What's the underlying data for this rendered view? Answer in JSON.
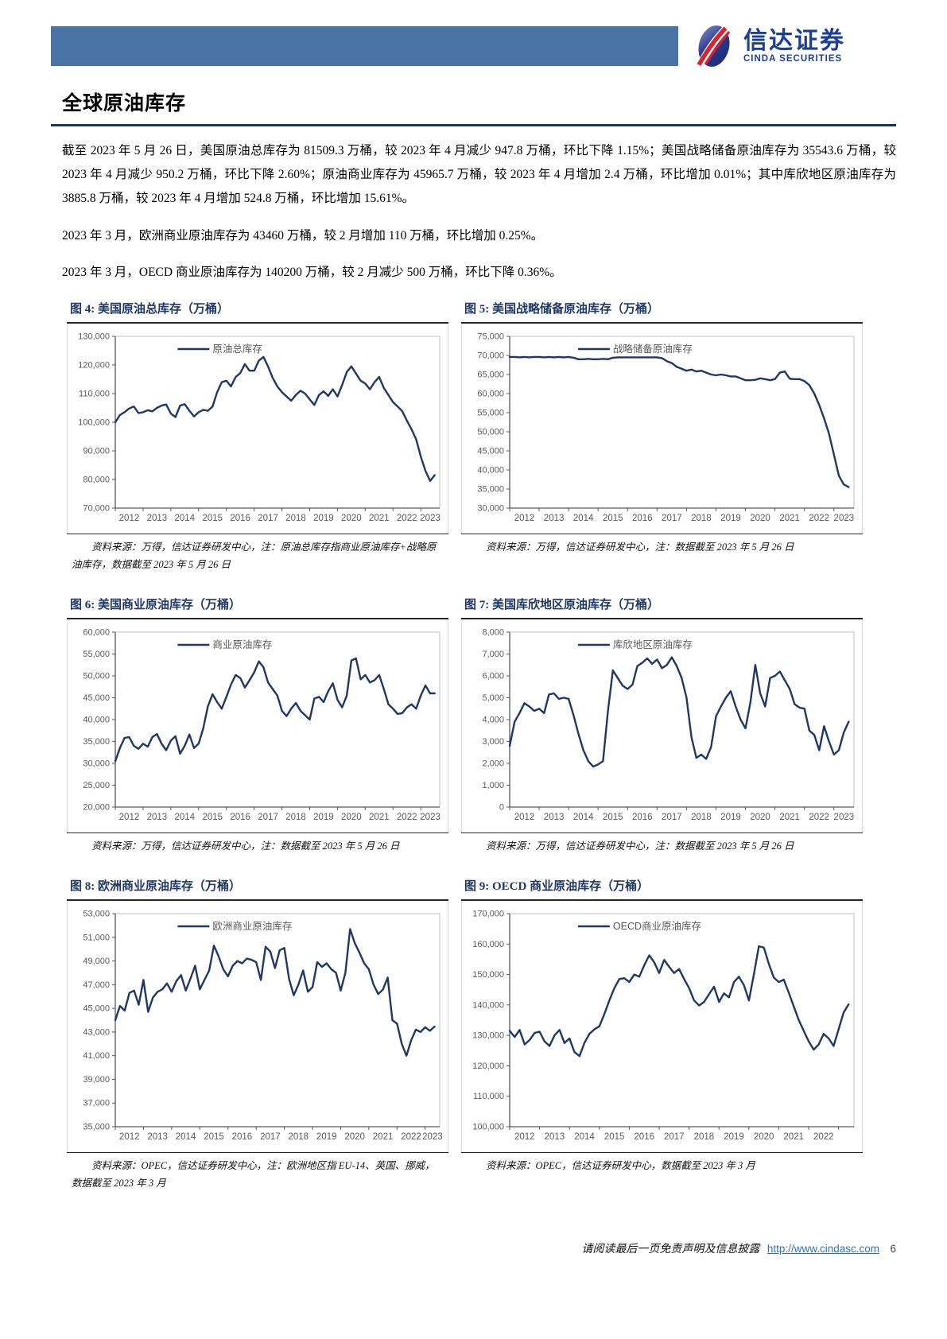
{
  "page": {
    "title": "全球原油库存",
    "footer": {
      "disclaimer": "请阅读最后一页免责声明及信息披露",
      "url": "http://www.cindasc.com",
      "page_number": "6"
    }
  },
  "brand": {
    "name_cn": "信达证券",
    "name_en": "CINDA SECURITIES",
    "header_bar_color": "#4b74a6",
    "logo_blue": "#1c3f94",
    "logo_red": "#d8232a"
  },
  "colors": {
    "line": "#1f3864",
    "figure_title": "#1f3864",
    "axis_text": "#595959",
    "plot_border": "#bfbfbf",
    "axis_line": "#595959"
  },
  "paragraphs": [
    "截至 2023 年 5 月 26 日，美国原油总库存为 81509.3 万桶，较 2023 年 4 月减少 947.8 万桶，环比下降 1.15%；美国战略储备原油库存为 35543.6 万桶，较 2023 年 4 月减少 950.2 万桶，环比下降 2.60%；原油商业库存为 45965.7 万桶，较 2023 年 4 月增加 2.4 万桶，环比增加 0.01%；其中库欣地区原油库存为 3885.8 万桶，较 2023 年 4 月增加 524.8 万桶，环比增加 15.61%。",
    "2023 年 3 月，欧洲商业原油库存为 43460 万桶，较 2 月增加 110 万桶，环比增加 0.25%。",
    "2023 年 3 月，OECD 商业原油库存为 140200 万桶，较 2 月减少 500 万桶，环比下降 0.36%。"
  ],
  "chart_data": [
    {
      "type": "line",
      "figure_label": "图 4:  美国原油总库存（万桶）",
      "legend": "原油总库存",
      "source": "资料来源：万得，信达证券研发中心，注：原油总库存指商业原油库存+战略原油库存，数据截至 2023 年 5 月 26 日",
      "xlabel": "",
      "ylabel": "",
      "ylim": [
        70000,
        130000
      ],
      "ytick_step": 10000,
      "x_labels": [
        "2012",
        "2013",
        "2014",
        "2015",
        "2016",
        "2017",
        "2018",
        "2019",
        "2020",
        "2021",
        "2022",
        "2023"
      ],
      "x_start": 2012.0,
      "x_step": 0.1667,
      "values": [
        100000,
        102500,
        103500,
        104800,
        105500,
        103200,
        103500,
        104200,
        103800,
        105000,
        105800,
        106200,
        103000,
        101800,
        105800,
        106300,
        104000,
        102000,
        103500,
        104300,
        104000,
        105500,
        110500,
        114000,
        114500,
        112500,
        115800,
        117200,
        120300,
        118000,
        118000,
        121500,
        122800,
        119500,
        115500,
        112500,
        110500,
        109000,
        107500,
        109500,
        111000,
        110000,
        108000,
        106000,
        109500,
        110800,
        109200,
        111500,
        109000,
        113000,
        117500,
        119500,
        117000,
        114500,
        113500,
        111500,
        114000,
        115800,
        112000,
        109500,
        107000,
        105500,
        103800,
        100500,
        97500,
        94000,
        88000,
        83000,
        79500,
        81500
      ]
    },
    {
      "type": "line",
      "figure_label": "图 5:  美国战略储备原油库存（万桶）",
      "legend": "战略储备原油库存",
      "source": "资料来源：万得，信达证券研发中心，注：数据截至 2023 年 5 月 26 日",
      "xlabel": "",
      "ylabel": "",
      "ylim": [
        30000,
        75000
      ],
      "ytick_step": 5000,
      "x_labels": [
        "2012",
        "2013",
        "2014",
        "2015",
        "2016",
        "2017",
        "2018",
        "2019",
        "2020",
        "2021",
        "2022",
        "2023"
      ],
      "x_start": 2012.0,
      "x_step": 0.1667,
      "values": [
        69600,
        69600,
        69500,
        69600,
        69500,
        69600,
        69600,
        69500,
        69600,
        69500,
        69600,
        69500,
        69600,
        69400,
        69000,
        69000,
        69100,
        69000,
        69000,
        69100,
        69000,
        69400,
        69500,
        69500,
        69500,
        69500,
        69500,
        69500,
        69500,
        69500,
        69500,
        69300,
        68500,
        68000,
        67000,
        66500,
        66000,
        66300,
        65800,
        66000,
        65500,
        65000,
        64800,
        65000,
        64800,
        64500,
        64500,
        64000,
        63500,
        63500,
        63600,
        64000,
        63800,
        63500,
        63800,
        65500,
        65800,
        63900,
        63800,
        63800,
        63300,
        62200,
        60000,
        57000,
        53500,
        49500,
        44000,
        38500,
        36200,
        35500
      ]
    },
    {
      "type": "line",
      "figure_label": "图 6:  美国商业原油库存（万桶）",
      "legend": "商业原油库存",
      "source": "资料来源：万得，信达证券研发中心，注：数据截至 2023 年 5 月 26 日",
      "xlabel": "",
      "ylabel": "",
      "ylim": [
        20000,
        60000
      ],
      "ytick_step": 5000,
      "x_labels": [
        "2012",
        "2013",
        "2014",
        "2015",
        "2016",
        "2017",
        "2018",
        "2019",
        "2020",
        "2021",
        "2022",
        "2023"
      ],
      "x_start": 2012.0,
      "x_step": 0.1667,
      "values": [
        30500,
        33500,
        35800,
        36000,
        34000,
        33300,
        34500,
        33800,
        36000,
        36700,
        34500,
        33000,
        35200,
        36200,
        32200,
        34000,
        36600,
        33500,
        34500,
        38000,
        43000,
        45800,
        44000,
        42500,
        45200,
        48000,
        50200,
        49500,
        47300,
        49000,
        50800,
        53300,
        52000,
        48500,
        47000,
        45500,
        42000,
        40800,
        42500,
        43800,
        42000,
        41000,
        40000,
        44800,
        45200,
        44000,
        46500,
        48300,
        44500,
        42800,
        45500,
        53500,
        54000,
        49200,
        50200,
        48500,
        49000,
        50200,
        47000,
        43500,
        42500,
        41300,
        41500,
        42800,
        43500,
        42500,
        45500,
        47800,
        46000,
        46000
      ]
    },
    {
      "type": "line",
      "figure_label": "图 7:  美国库欣地区原油库存（万桶）",
      "legend": "库欣地区原油库存",
      "source": "资料来源：万得，信达证券研发中心，注：数据截至 2023 年 5 月 26 日",
      "xlabel": "",
      "ylabel": "",
      "ylim": [
        0,
        8000
      ],
      "ytick_step": 1000,
      "x_labels": [
        "2012",
        "2013",
        "2014",
        "2015",
        "2016",
        "2017",
        "2018",
        "2019",
        "2020",
        "2021",
        "2022",
        "2023"
      ],
      "x_start": 2012.0,
      "x_step": 0.1667,
      "values": [
        2800,
        3900,
        4300,
        4750,
        4600,
        4400,
        4500,
        4300,
        5150,
        5200,
        4950,
        5000,
        4950,
        4200,
        3350,
        2600,
        2100,
        1850,
        1950,
        2100,
        4400,
        6250,
        5900,
        5550,
        5400,
        5600,
        6450,
        6600,
        6800,
        6550,
        6750,
        6350,
        6500,
        6850,
        6450,
        5900,
        5000,
        3200,
        2250,
        2400,
        2200,
        2750,
        4150,
        4600,
        5000,
        5300,
        4600,
        4000,
        3600,
        4800,
        6500,
        5200,
        4600,
        5900,
        6000,
        6200,
        5800,
        5400,
        4700,
        4550,
        4500,
        3500,
        3300,
        2600,
        3700,
        3000,
        2400,
        2600,
        3400,
        3900
      ]
    },
    {
      "type": "line",
      "figure_label": "图 8:  欧洲商业原油库存（万桶）",
      "legend": "欧洲商业原油库存",
      "source": "资料来源：OPEC，信达证券研发中心，注：欧洲地区指 EU-14、英国、挪威，数据截至 2023 年 3 月",
      "xlabel": "",
      "ylabel": "",
      "ylim": [
        35000,
        53000
      ],
      "ytick_step": 2000,
      "x_labels": [
        "2012",
        "2013",
        "2014",
        "2015",
        "2016",
        "2017",
        "2018",
        "2019",
        "2020",
        "2021",
        "2022",
        "2023"
      ],
      "x_start": 2012.0,
      "x_step": 0.1667,
      "values": [
        44000,
        45200,
        44800,
        46300,
        46500,
        45300,
        47400,
        44700,
        45900,
        46400,
        46600,
        47100,
        46400,
        47300,
        47800,
        46500,
        47500,
        48600,
        46600,
        47400,
        48200,
        50300,
        49400,
        48300,
        47700,
        48600,
        49000,
        48800,
        49200,
        49100,
        48900,
        47400,
        50200,
        49800,
        48400,
        49900,
        50100,
        47500,
        46100,
        47000,
        48200,
        46400,
        46800,
        48900,
        48500,
        48800,
        48300,
        48000,
        46500,
        48000,
        51700,
        50500,
        49700,
        48800,
        48300,
        47000,
        46200,
        46600,
        47600,
        44000,
        43700,
        42000,
        41000,
        42300,
        43200,
        43000,
        43400,
        43100,
        43460
      ]
    },
    {
      "type": "line",
      "figure_label": "图 9:  OECD 商业原油库存（万桶）",
      "legend": "OECD商业原油库存",
      "source": "资料来源：OPEC，信达证券研发中心，数据截至 2023 年 3 月",
      "xlabel": "",
      "ylabel": "",
      "ylim": [
        100000,
        170000
      ],
      "ytick_step": 10000,
      "x_labels": [
        "2012",
        "2013",
        "2014",
        "2015",
        "2016",
        "2017",
        "2018",
        "2019",
        "2020",
        "2021",
        "2022"
      ],
      "x_start": 2012.0,
      "x_step": 0.1667,
      "values": [
        131500,
        129500,
        131800,
        127000,
        128500,
        130800,
        131200,
        128000,
        126500,
        130000,
        131800,
        127500,
        129000,
        124500,
        123200,
        127500,
        130500,
        132000,
        133000,
        137000,
        141500,
        145500,
        148500,
        148800,
        147500,
        150000,
        149300,
        153000,
        156300,
        154000,
        150500,
        154800,
        152500,
        150500,
        151800,
        148500,
        145500,
        141500,
        139800,
        141000,
        143500,
        146000,
        141000,
        143800,
        142500,
        147500,
        149300,
        146500,
        141500,
        150000,
        159300,
        158800,
        153500,
        149000,
        147500,
        148300,
        144000,
        139500,
        135000,
        131500,
        128000,
        125300,
        127000,
        130500,
        129000,
        126500,
        132000,
        137500,
        140200
      ]
    }
  ]
}
